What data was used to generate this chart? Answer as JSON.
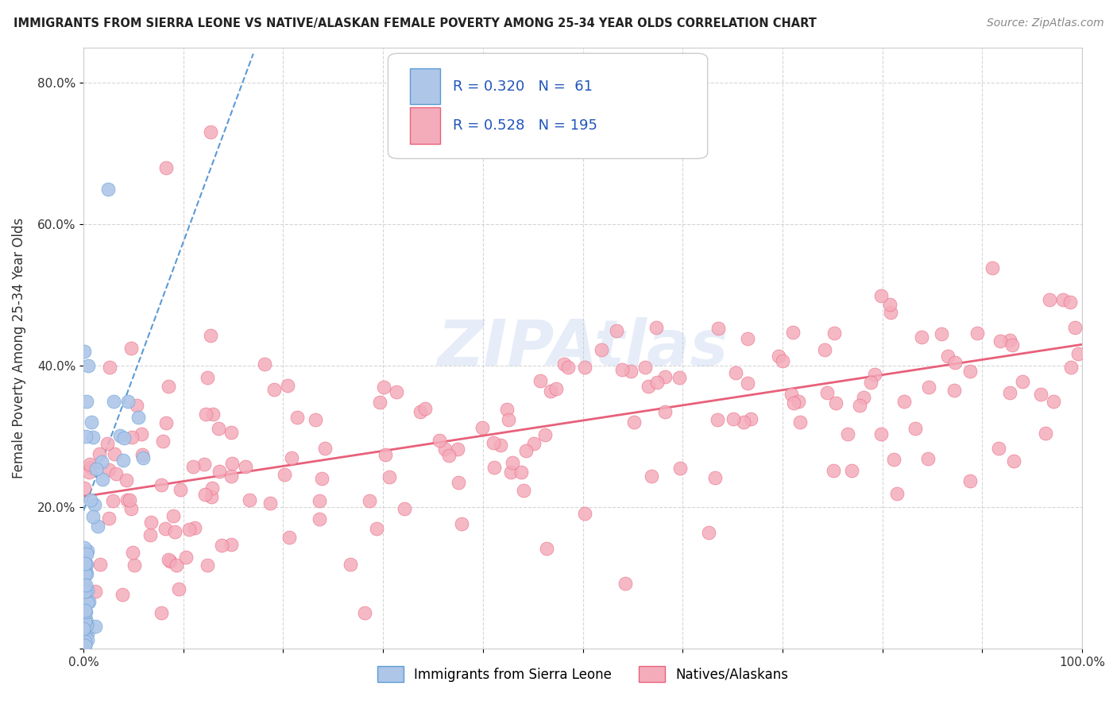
{
  "title": "IMMIGRANTS FROM SIERRA LEONE VS NATIVE/ALASKAN FEMALE POVERTY AMONG 25-34 YEAR OLDS CORRELATION CHART",
  "source": "Source: ZipAtlas.com",
  "ylabel": "Female Poverty Among 25-34 Year Olds",
  "xlim": [
    0,
    1.0
  ],
  "ylim": [
    0,
    0.85
  ],
  "x_tick_pos": [
    0.0,
    0.1,
    0.2,
    0.3,
    0.4,
    0.5,
    0.6,
    0.7,
    0.8,
    0.9,
    1.0
  ],
  "x_tick_labels": [
    "0.0%",
    "",
    "",
    "",
    "",
    "",
    "",
    "",
    "",
    "",
    "100.0%"
  ],
  "y_tick_pos": [
    0.0,
    0.2,
    0.4,
    0.6,
    0.8
  ],
  "y_tick_labels": [
    "",
    "20.0%",
    "40.0%",
    "60.0%",
    "80.0%"
  ],
  "color_blue_fill": "#AEC6E8",
  "color_blue_edge": "#5B9BD5",
  "color_pink_fill": "#F4ACBB",
  "color_pink_edge": "#E8607A",
  "color_pink_line": "#E8607A",
  "color_blue_line": "#5B9BD5",
  "watermark": "ZIPAtlas",
  "legend_r1": "R = 0.320",
  "legend_n1": "N =  61",
  "legend_r2": "R = 0.528",
  "legend_n2": "N = 195",
  "legend_label1": "Immigrants from Sierra Leone",
  "legend_label2": "Natives/Alaskans",
  "blue_intercept": 0.195,
  "blue_slope": 3.8,
  "pink_intercept": 0.215,
  "pink_slope": 0.215
}
